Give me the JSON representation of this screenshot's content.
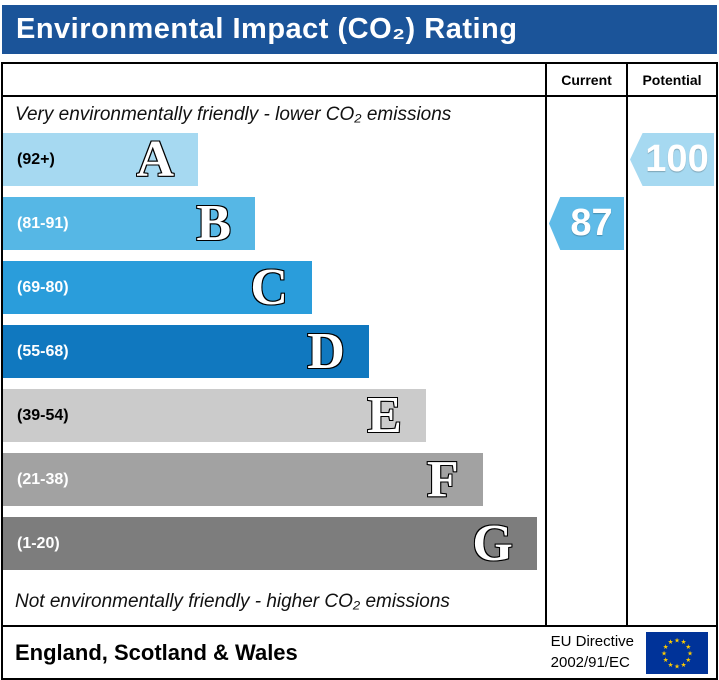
{
  "title_bar": {
    "title": "Environmental Impact (CO₂) Rating"
  },
  "columns": {
    "current": "Current",
    "potential": "Potential"
  },
  "captions": {
    "top": "Very environmentally friendly - lower CO₂ emissions",
    "bottom": "Not environmentally friendly - higher CO₂ emissions"
  },
  "chart_data": {
    "type": "bar",
    "title": "Environmental Impact (CO₂) Rating",
    "bands": [
      {
        "letter": "A",
        "range": "(92+)",
        "color": "#a6d9f1",
        "text_color": "#000000",
        "width_pct": 36
      },
      {
        "letter": "B",
        "range": "(81-91)",
        "color": "#56b7e5",
        "text_color": "#ffffff",
        "width_pct": 46.5
      },
      {
        "letter": "C",
        "range": "(69-80)",
        "color": "#2a9ddb",
        "text_color": "#ffffff",
        "width_pct": 57
      },
      {
        "letter": "D",
        "range": "(55-68)",
        "color": "#1078bf",
        "text_color": "#ffffff",
        "width_pct": 67.5
      },
      {
        "letter": "E",
        "range": "(39-54)",
        "color": "#cbcbcb",
        "text_color": "#000000",
        "width_pct": 78
      },
      {
        "letter": "F",
        "range": "(21-38)",
        "color": "#a2a2a2",
        "text_color": "#ffffff",
        "width_pct": 88.5
      },
      {
        "letter": "G",
        "range": "(1-20)",
        "color": "#7d7d7d",
        "text_color": "#ffffff",
        "width_pct": 98.5
      }
    ],
    "current": {
      "value": 87,
      "band": "B",
      "color": "#5fbbe8"
    },
    "potential": {
      "value": 100,
      "band": "A",
      "color": "#a6d9f1"
    }
  },
  "footer": {
    "region": "England, Scotland & Wales",
    "directive_line1": "EU Directive",
    "directive_line2": "2002/91/EC",
    "flag": {
      "name": "eu-flag",
      "background": "#003399",
      "star_color": "#ffcc00"
    }
  },
  "colors": {
    "title_bar": "#1b5499",
    "border": "#000000"
  }
}
